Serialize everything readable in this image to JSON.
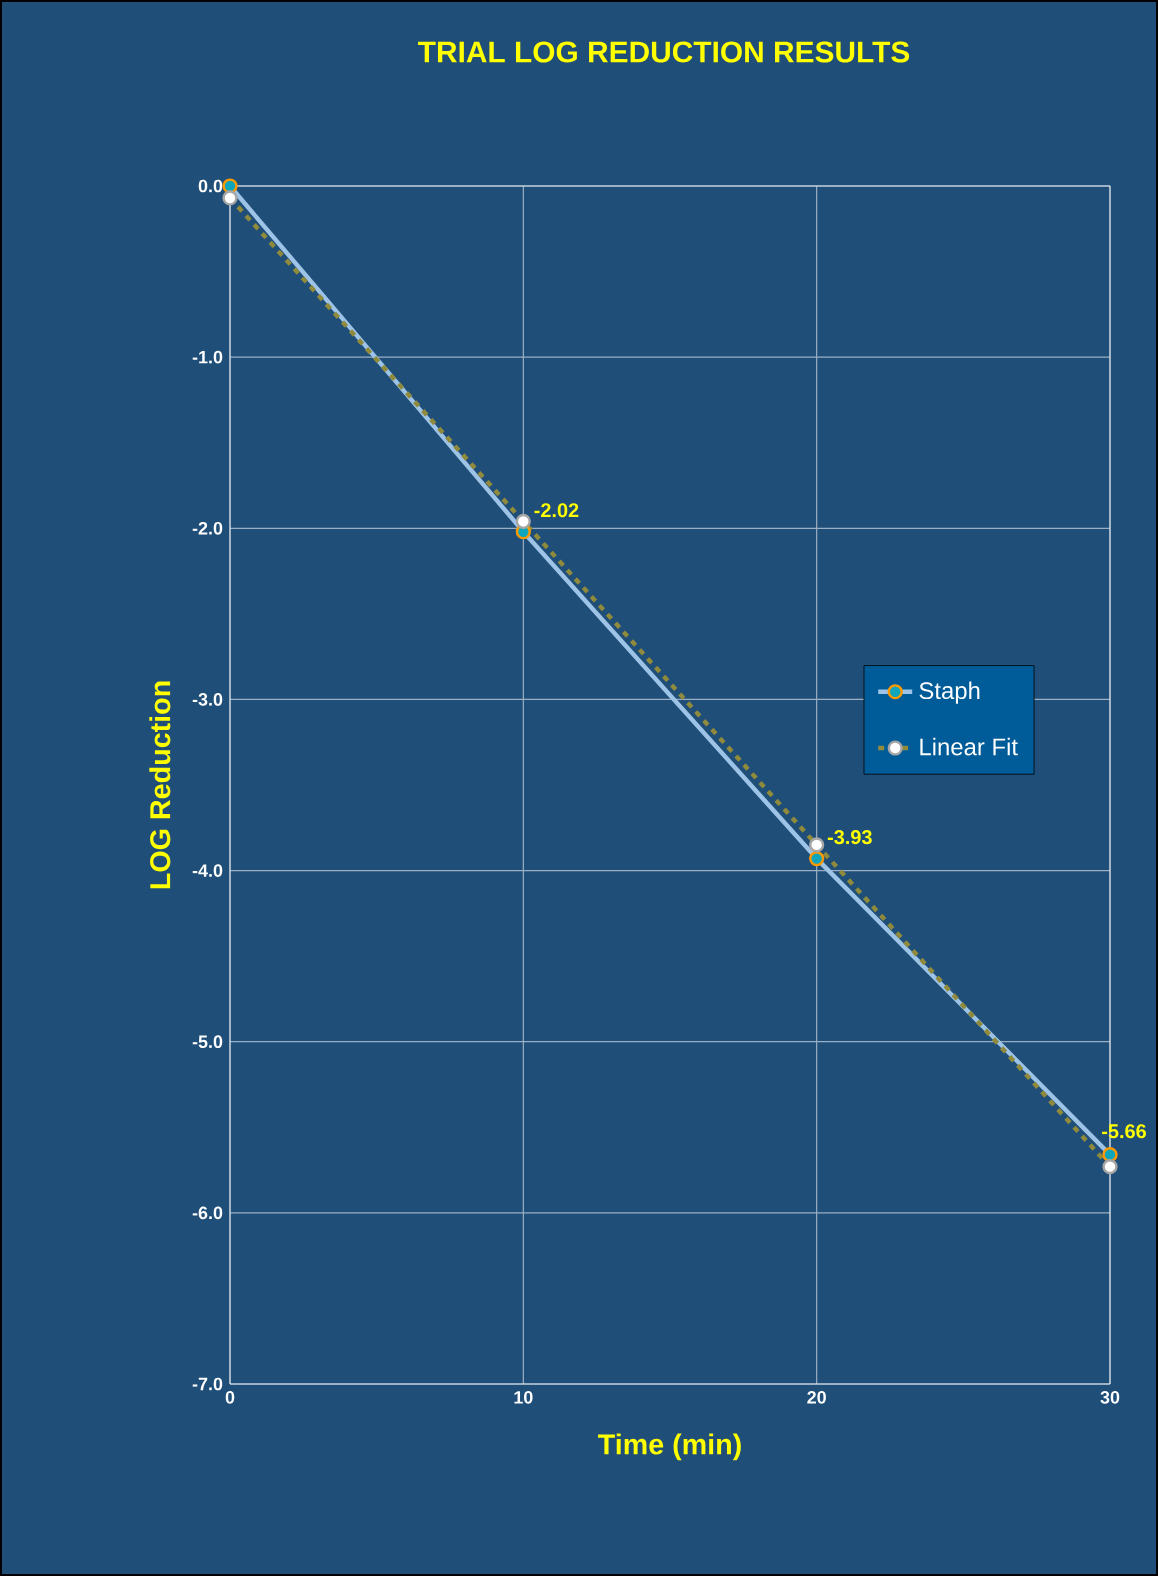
{
  "chart_data": {
    "type": "line",
    "title": "TRIAL  LOG  REDUCTION  RESULTS",
    "xlabel": "Time (min)",
    "ylabel": "LOG Reduction",
    "x": [
      0,
      10,
      20,
      30
    ],
    "series": [
      {
        "name": "Staph",
        "color": "#9dc3e6",
        "values": [
          0.0,
          -2.02,
          -3.93,
          -5.66
        ],
        "value_labels": [
          null,
          "-2.02",
          "-3.93",
          "-5.66"
        ],
        "line_style": "solid"
      },
      {
        "name": "Linear Fit",
        "color": "#8f8a3c",
        "values": [
          -0.07,
          -1.96,
          -3.85,
          -5.73
        ],
        "line_style": "dashed"
      }
    ],
    "xlim": [
      0,
      30
    ],
    "ylim": [
      -7.0,
      0.0
    ],
    "xticks": [
      0,
      10,
      20,
      30
    ],
    "yticks": [
      {
        "value": -7,
        "label": "-7.0"
      },
      {
        "value": -6,
        "label": "-6.0"
      },
      {
        "value": -5,
        "label": "-5.0"
      },
      {
        "value": -4,
        "label": "-4.0"
      },
      {
        "value": -3,
        "label": "-3.0"
      },
      {
        "value": -2,
        "label": "-2.0"
      },
      {
        "value": -1,
        "label": "-1.0"
      },
      {
        "value": 0,
        "label": "0.0"
      }
    ],
    "grid": true,
    "legend": "right",
    "marker": "circle"
  }
}
